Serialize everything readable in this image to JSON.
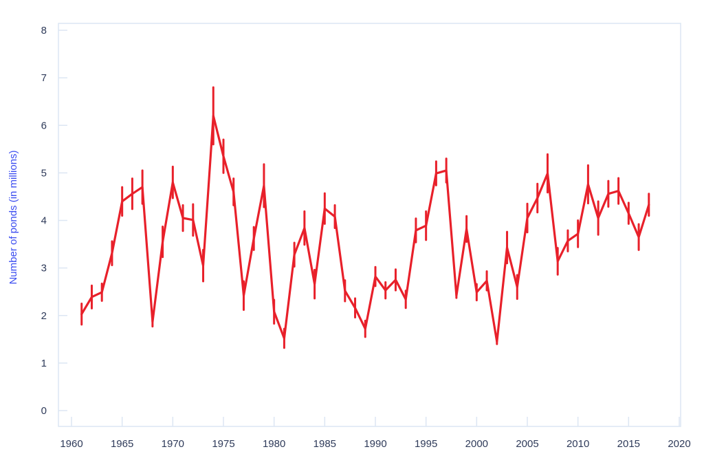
{
  "chart_data": {
    "type": "line",
    "title": "",
    "xlabel": "",
    "ylabel": "Number of ponds (in millions)",
    "xlim": [
      1960,
      2020
    ],
    "ylim": [
      0,
      8
    ],
    "x_ticks": [
      1960,
      1965,
      1970,
      1975,
      1980,
      1985,
      1990,
      1995,
      2000,
      2005,
      2010,
      2015,
      2020
    ],
    "y_ticks": [
      0,
      1,
      2,
      3,
      4,
      5,
      6,
      7,
      8
    ],
    "grid": false,
    "legend": null,
    "error_bars": true,
    "series": [
      {
        "name": "Ponds",
        "color": "#e8202a",
        "x": [
          1961,
          1962,
          1963,
          1964,
          1965,
          1966,
          1967,
          1968,
          1969,
          1970,
          1971,
          1972,
          1973,
          1974,
          1975,
          1976,
          1977,
          1978,
          1979,
          1980,
          1981,
          1982,
          1983,
          1984,
          1985,
          1986,
          1987,
          1988,
          1989,
          1990,
          1991,
          1992,
          1993,
          1994,
          1995,
          1996,
          1997,
          1998,
          1999,
          2000,
          2001,
          2002,
          2003,
          2004,
          2005,
          2006,
          2007,
          2008,
          2009,
          2010,
          2011,
          2012,
          2013,
          2014,
          2015,
          2016,
          2017
        ],
        "values": [
          2.03,
          2.39,
          2.49,
          3.31,
          4.4,
          4.56,
          4.7,
          1.87,
          3.55,
          4.8,
          4.05,
          4.01,
          3.05,
          6.2,
          5.35,
          4.6,
          2.42,
          3.62,
          4.73,
          2.08,
          1.52,
          3.28,
          3.84,
          2.66,
          4.25,
          4.08,
          2.52,
          2.16,
          1.72,
          2.82,
          2.53,
          2.75,
          2.34,
          3.79,
          3.89,
          4.99,
          5.05,
          2.42,
          3.82,
          2.49,
          2.73,
          1.45,
          3.43,
          2.6,
          4.05,
          4.47,
          4.99,
          3.14,
          3.57,
          3.72,
          4.76,
          4.05,
          4.56,
          4.62,
          4.15,
          3.65,
          4.33
        ],
        "error": [
          0.22,
          0.24,
          0.18,
          0.25,
          0.3,
          0.32,
          0.35,
          0.1,
          0.32,
          0.33,
          0.27,
          0.33,
          0.33,
          0.6,
          0.35,
          0.28,
          0.3,
          0.24,
          0.45,
          0.25,
          0.2,
          0.25,
          0.35,
          0.3,
          0.32,
          0.24,
          0.22,
          0.2,
          0.17,
          0.2,
          0.17,
          0.22,
          0.18,
          0.25,
          0.3,
          0.25,
          0.25,
          0.05,
          0.27,
          0.17,
          0.2,
          0.05,
          0.33,
          0.25,
          0.3,
          0.3,
          0.4,
          0.28,
          0.22,
          0.28,
          0.4,
          0.35,
          0.27,
          0.27,
          0.22,
          0.27,
          0.23
        ]
      }
    ]
  }
}
